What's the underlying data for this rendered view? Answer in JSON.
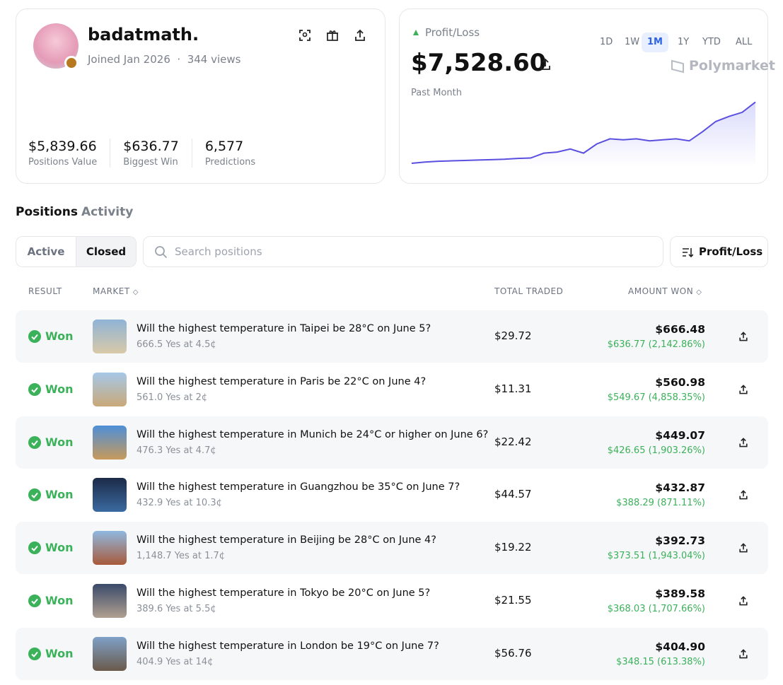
{
  "profile": {
    "username": "badatmath.",
    "joined": "Joined Jan 2026",
    "views": "344 views",
    "stats": [
      {
        "value": "$5,839.66",
        "label": "Positions Value"
      },
      {
        "value": "$636.77",
        "label": "Biggest Win"
      },
      {
        "value": "6,577",
        "label": "Predictions"
      }
    ]
  },
  "pnl": {
    "label": "Profit/Loss",
    "ranges": [
      "1D",
      "1W",
      "1M",
      "1Y",
      "YTD",
      "ALL"
    ],
    "active_range": 2,
    "amount": "$7,528.60",
    "brand": "Polymarket",
    "period": "Past Month",
    "chart": {
      "type": "line",
      "color": "#5b4fe0",
      "ylim": [
        0,
        8000
      ],
      "values": [
        0,
        150,
        250,
        300,
        350,
        400,
        450,
        500,
        600,
        650,
        1250,
        1380,
        1760,
        1250,
        2380,
        3010,
        2890,
        3010,
        2760,
        2890,
        3010,
        2760,
        3890,
        5140,
        5770,
        6270,
        7530
      ]
    }
  },
  "tabs": [
    "Positions",
    "Activity"
  ],
  "active_tab": 0,
  "filters": [
    "Active",
    "Closed"
  ],
  "active_filter": 1,
  "search_placeholder": "Search positions",
  "sort": "Profit/Loss",
  "columns": [
    "RESULT",
    "MARKET",
    "TOTAL TRADED",
    "AMOUNT WON"
  ],
  "rows": [
    {
      "result": "Won",
      "title": "Will the highest temperature in Taipei be 28°C on June 5?",
      "detail": "666.5 Yes at 4.5¢",
      "traded": "$29.72",
      "won": "$666.48",
      "profit": "$636.77 (2,142.86%)"
    },
    {
      "result": "Won",
      "title": "Will the highest temperature in Paris be 22°C on June 4?",
      "detail": "561.0 Yes at 2¢",
      "traded": "$11.31",
      "won": "$560.98",
      "profit": "$549.67 (4,858.35%)"
    },
    {
      "result": "Won",
      "title": "Will the highest temperature in Munich be 24°C or higher on June 6?",
      "detail": "476.3 Yes at 4.7¢",
      "traded": "$22.42",
      "won": "$449.07",
      "profit": "$426.65 (1,903.26%)"
    },
    {
      "result": "Won",
      "title": "Will the highest temperature in Guangzhou be 35°C on June 7?",
      "detail": "432.9 Yes at 10.3¢",
      "traded": "$44.57",
      "won": "$432.87",
      "profit": "$388.29 (871.11%)"
    },
    {
      "result": "Won",
      "title": "Will the highest temperature in Beijing be 28°C on June 4?",
      "detail": "1,148.7 Yes at 1.7¢",
      "traded": "$19.22",
      "won": "$392.73",
      "profit": "$373.51 (1,943.04%)"
    },
    {
      "result": "Won",
      "title": "Will the highest temperature in Tokyo be 20°C on June 5?",
      "detail": "389.6 Yes at 5.5¢",
      "traded": "$21.55",
      "won": "$389.58",
      "profit": "$368.03 (1,707.66%)"
    },
    {
      "result": "Won",
      "title": "Will the highest temperature in London be 19°C on June 7?",
      "detail": "404.9 Yes at 14¢",
      "traded": "$56.76",
      "won": "$404.90",
      "profit": "$348.15 (613.38%)"
    }
  ]
}
